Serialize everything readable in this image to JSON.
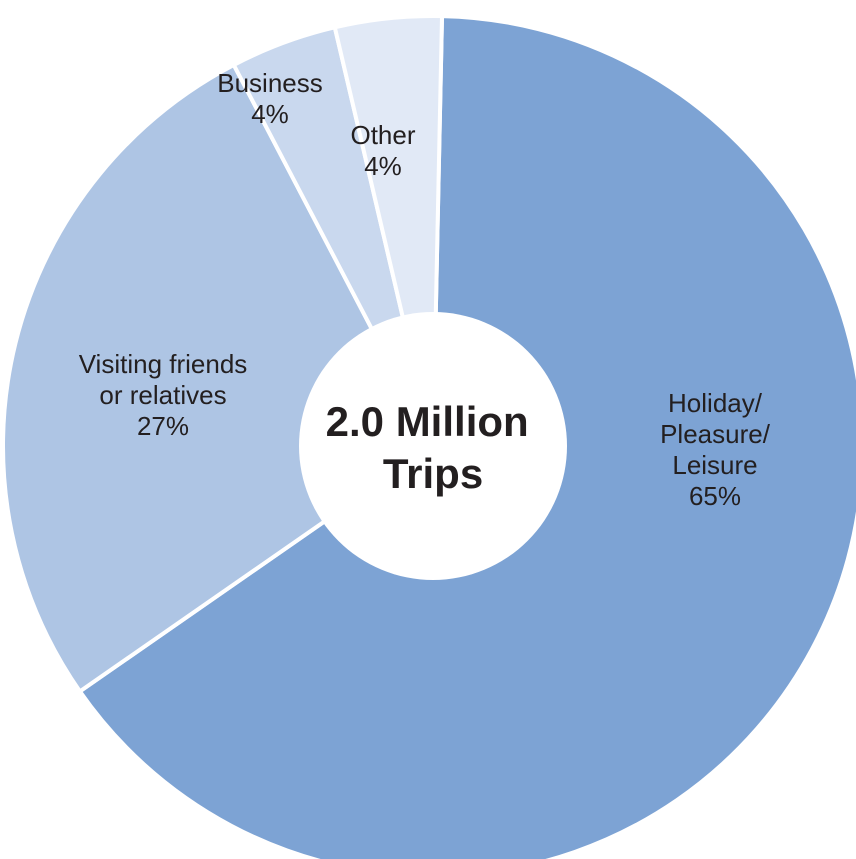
{
  "chart_data": {
    "type": "pie",
    "style": "donut",
    "center_text": [
      "2.0 Million",
      "Trips"
    ],
    "slices": [
      {
        "label_lines": [
          "Holiday/",
          "Pleasure/",
          "Leisure"
        ],
        "value": 65,
        "value_text": "65%",
        "color": "#7da3d4"
      },
      {
        "label_lines": [
          "Visiting friends",
          "or relatives"
        ],
        "value": 27,
        "value_text": "27%",
        "color": "#aec5e4"
      },
      {
        "label_lines": [
          "Business"
        ],
        "value": 4,
        "value_text": "4%",
        "color": "#c9d8ee"
      },
      {
        "label_lines": [
          "Other"
        ],
        "value": 4,
        "value_text": "4%",
        "color": "#e1e9f6"
      }
    ],
    "start": "top",
    "direction": "clockwise",
    "slice_border_color": "#ffffff",
    "text_color": "#231f20"
  }
}
